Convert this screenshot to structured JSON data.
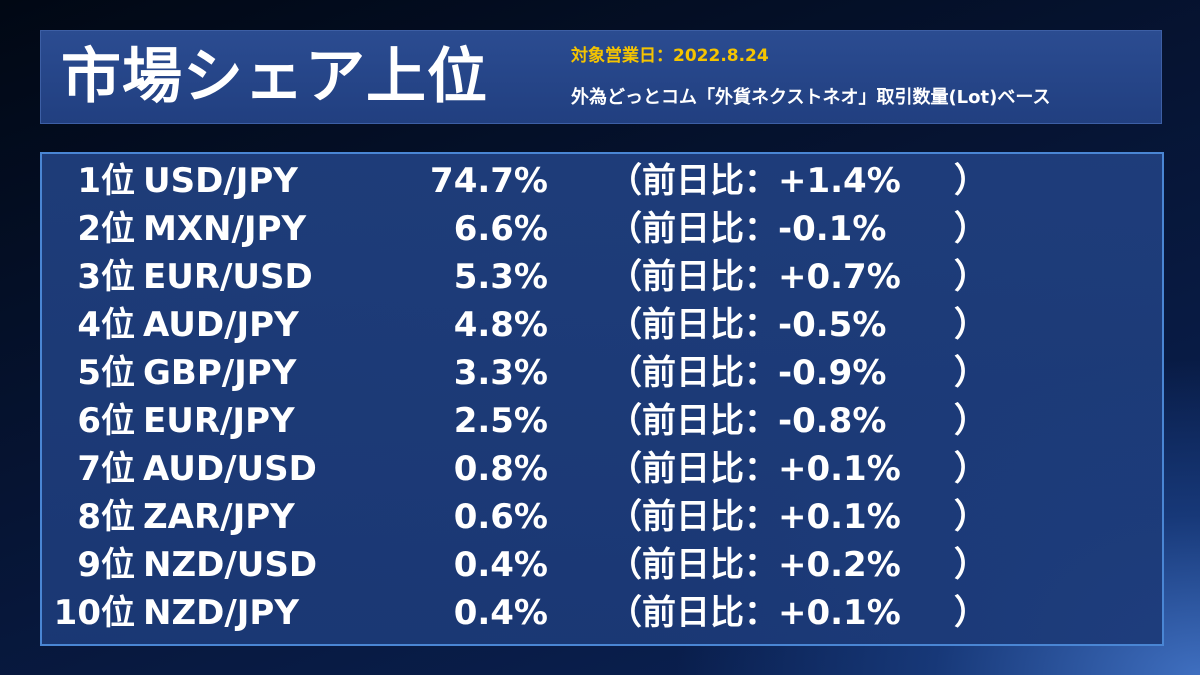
{
  "header": {
    "title": "市場シェア上位",
    "business_date": "対象営業日：2022.8.24",
    "basis": "外為どっとコム「外貨ネクストネオ」取引数量(Lot)ベース"
  },
  "change_prefix": "（前日比：",
  "change_suffix": "）",
  "rankings": [
    {
      "rank": "1位",
      "pair": "USD/JPY",
      "share": "74.7%",
      "change": "+1.4%"
    },
    {
      "rank": "2位",
      "pair": "MXN/JPY",
      "share": "6.6%",
      "change": "-0.1%"
    },
    {
      "rank": "3位",
      "pair": "EUR/USD",
      "share": "5.3%",
      "change": "+0.7%"
    },
    {
      "rank": "4位",
      "pair": "AUD/JPY",
      "share": "4.8%",
      "change": "-0.5%"
    },
    {
      "rank": "5位",
      "pair": "GBP/JPY",
      "share": "3.3%",
      "change": "-0.9%"
    },
    {
      "rank": "6位",
      "pair": "EUR/JPY",
      "share": "2.5%",
      "change": "-0.8%"
    },
    {
      "rank": "7位",
      "pair": "AUD/USD",
      "share": "0.8%",
      "change": "+0.1%"
    },
    {
      "rank": "8位",
      "pair": "ZAR/JPY",
      "share": "0.6%",
      "change": "+0.1%"
    },
    {
      "rank": "9位",
      "pair": "NZD/USD",
      "share": "0.4%",
      "change": "+0.2%"
    },
    {
      "rank": "10位",
      "pair": "NZD/JPY",
      "share": "0.4%",
      "change": "+0.1%"
    }
  ]
}
